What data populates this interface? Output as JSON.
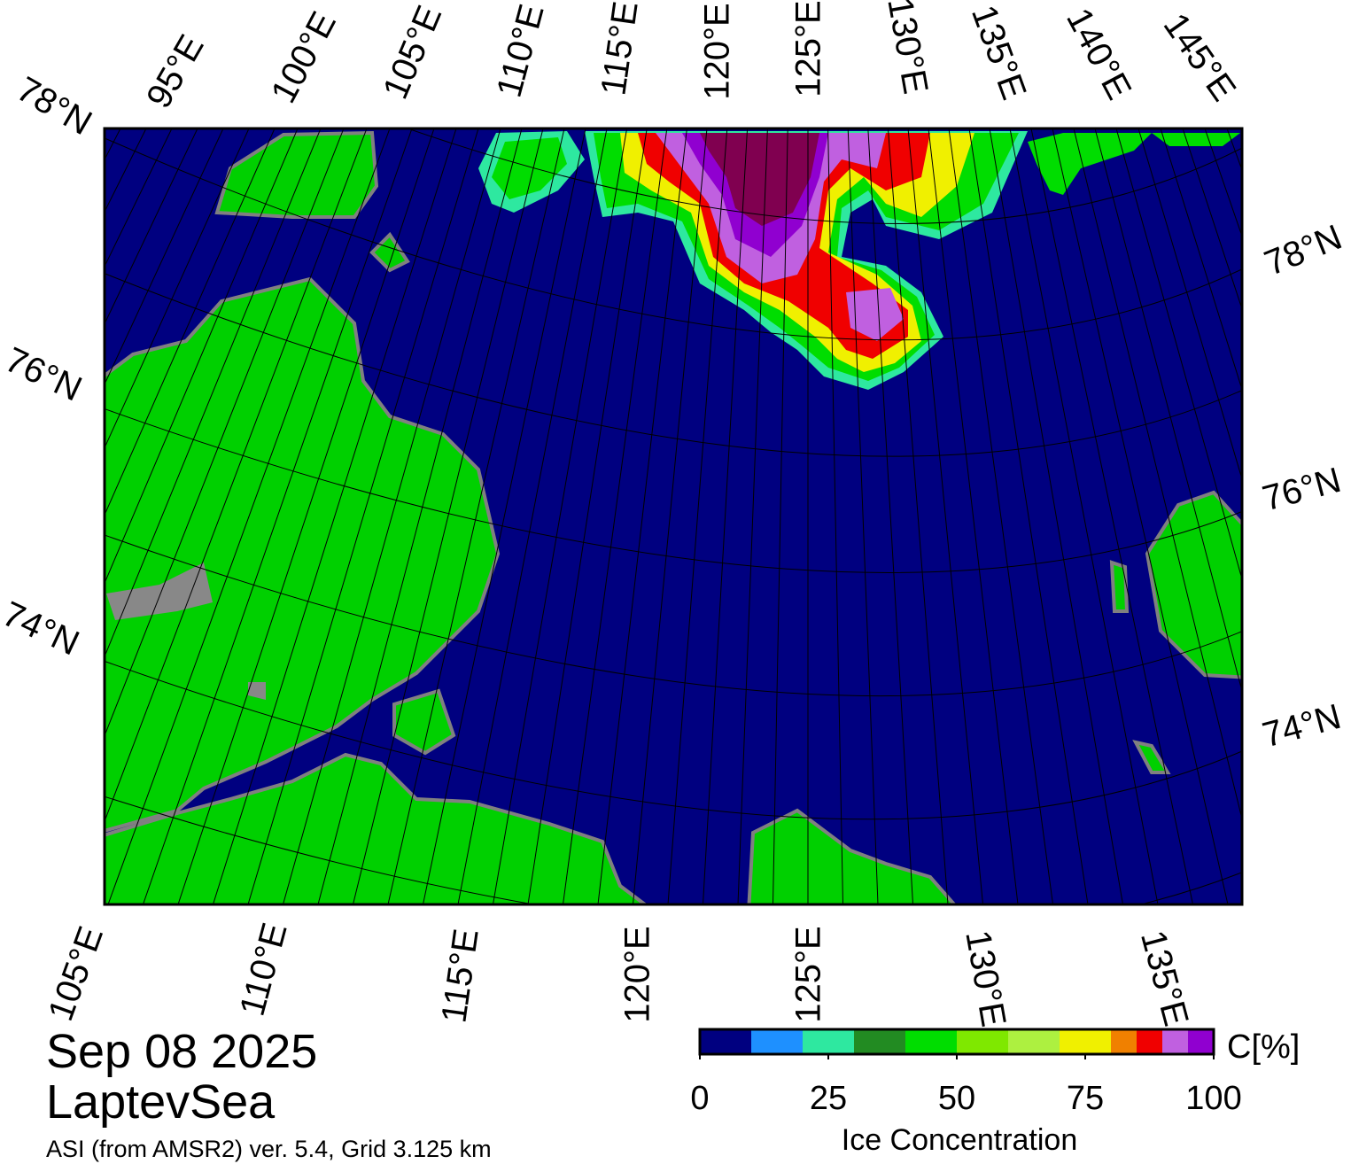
{
  "title": {
    "date": "Sep 08 2025",
    "region": "LaptevSea",
    "source": "ASI (from AMSR2) ver. 5.4,  Grid 3.125 km"
  },
  "map": {
    "top_labels": [
      "95°E",
      "100°E",
      "105°E",
      "110°E",
      "115°E",
      "120°E",
      "125°E",
      "130°E",
      "135°E",
      "140°E",
      "145°E"
    ],
    "left_labels": [
      "78°N",
      "76°N",
      "74°N"
    ],
    "right_labels": [
      "78°N",
      "76°N",
      "74°N"
    ],
    "bottom_labels": [
      "105°E",
      "110°E",
      "115°E",
      "120°E",
      "125°E",
      "130°E",
      "135°E"
    ]
  },
  "colorbar": {
    "label": "Ice Concentration",
    "unit": "C[%]",
    "bounds": [
      0,
      10,
      20,
      30,
      40,
      50,
      60,
      70,
      80,
      85,
      90,
      95,
      100
    ],
    "colors": [
      "#000080",
      "#1e90ff",
      "#2ee8a0",
      "#228b22",
      "#00dd00",
      "#7fe800",
      "#adf040",
      "#f0f000",
      "#f08000",
      "#f00000",
      "#c060e0",
      "#9000d0"
    ],
    "ticks": [
      0,
      25,
      50,
      75,
      100
    ]
  }
}
